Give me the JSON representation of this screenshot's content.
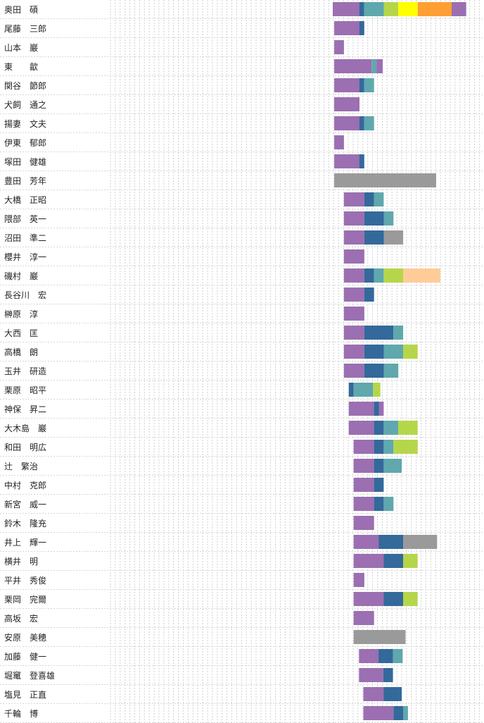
{
  "chart_data": {
    "type": "bar",
    "orientation": "horizontal",
    "stacked": true,
    "grid": true,
    "colors": {
      "purple": "#9b6fb1",
      "blue": "#33699b",
      "teal": "#5fa8ae",
      "lime": "#b5d64a",
      "yellow": "#ffff00",
      "orange": "#ff9e32",
      "peach": "#ffcc99",
      "gray": "#9a9a9a"
    },
    "rows": [
      {
        "name": "奥田　碩",
        "start": 68,
        "segments": [
          [
            "purple",
            5.5
          ],
          [
            "blue",
            1
          ],
          [
            "teal",
            4
          ],
          [
            "lime",
            3
          ],
          [
            "yellow",
            4
          ],
          [
            "orange",
            7
          ],
          [
            "purple",
            3
          ]
        ]
      },
      {
        "name": "尾藤　三郎",
        "start": 68.3,
        "segments": [
          [
            "purple",
            5.2
          ],
          [
            "blue",
            1
          ]
        ]
      },
      {
        "name": "山本　巖",
        "start": 68.3,
        "segments": [
          [
            "purple",
            2
          ]
        ]
      },
      {
        "name": "東　　歙",
        "start": 68.3,
        "segments": [
          [
            "purple",
            7.7
          ],
          [
            "teal",
            1
          ],
          [
            "purple",
            1.3
          ]
        ]
      },
      {
        "name": "関谷　節郎",
        "start": 68.3,
        "segments": [
          [
            "purple",
            5.2
          ],
          [
            "blue",
            1
          ],
          [
            "teal",
            2
          ]
        ]
      },
      {
        "name": "犬飼　通之",
        "start": 68.3,
        "segments": [
          [
            "purple",
            5.2
          ]
        ]
      },
      {
        "name": "揚妻　文夫",
        "start": 68.3,
        "segments": [
          [
            "purple",
            5.2
          ],
          [
            "blue",
            1
          ],
          [
            "teal",
            2
          ]
        ]
      },
      {
        "name": "伊東　郁郎",
        "start": 68.3,
        "segments": [
          [
            "purple",
            2
          ]
        ]
      },
      {
        "name": "塚田　健雄",
        "start": 68.3,
        "segments": [
          [
            "purple",
            5.2
          ],
          [
            "blue",
            1
          ]
        ]
      },
      {
        "name": "豊田　芳年",
        "start": 68.3,
        "segments": [
          [
            "gray",
            21
          ]
        ]
      },
      {
        "name": "大橋　正昭",
        "start": 70.3,
        "segments": [
          [
            "purple",
            4.2
          ],
          [
            "blue",
            2
          ],
          [
            "teal",
            2
          ]
        ]
      },
      {
        "name": "隈部　英一",
        "start": 70.3,
        "segments": [
          [
            "purple",
            4.2
          ],
          [
            "blue",
            4
          ],
          [
            "teal",
            2
          ]
        ]
      },
      {
        "name": "沼田　準二",
        "start": 70.3,
        "segments": [
          [
            "purple",
            4.2
          ],
          [
            "blue",
            4
          ],
          [
            "gray",
            4
          ]
        ]
      },
      {
        "name": "櫻井　淳一",
        "start": 70.3,
        "segments": [
          [
            "purple",
            4.2
          ]
        ]
      },
      {
        "name": "磯村　巖",
        "start": 70.3,
        "segments": [
          [
            "purple",
            4.2
          ],
          [
            "blue",
            2
          ],
          [
            "teal",
            2
          ],
          [
            "lime",
            4
          ],
          [
            "peach",
            7.7
          ]
        ]
      },
      {
        "name": "長谷川　宏",
        "start": 70.3,
        "segments": [
          [
            "purple",
            4.2
          ],
          [
            "blue",
            2
          ]
        ]
      },
      {
        "name": "榊原　淳",
        "start": 70.3,
        "segments": [
          [
            "purple",
            4.2
          ]
        ]
      },
      {
        "name": "大西　匡",
        "start": 70.3,
        "segments": [
          [
            "purple",
            4.2
          ],
          [
            "blue",
            6
          ],
          [
            "teal",
            2
          ]
        ]
      },
      {
        "name": "高橋　朗",
        "start": 70.3,
        "segments": [
          [
            "purple",
            4.2
          ],
          [
            "blue",
            4
          ],
          [
            "teal",
            4
          ],
          [
            "lime",
            3
          ]
        ]
      },
      {
        "name": "玉井　研造",
        "start": 70.3,
        "segments": [
          [
            "purple",
            4.2
          ],
          [
            "blue",
            4
          ],
          [
            "teal",
            3
          ]
        ]
      },
      {
        "name": "栗原　昭平",
        "start": 71.3,
        "segments": [
          [
            "blue",
            1
          ],
          [
            "teal",
            4
          ],
          [
            "lime",
            1.5
          ]
        ]
      },
      {
        "name": "神保　昇二",
        "start": 71.3,
        "segments": [
          [
            "purple",
            5.2
          ],
          [
            "blue",
            1
          ],
          [
            "purple",
            1
          ]
        ]
      },
      {
        "name": "大木島　巖",
        "start": 71.3,
        "segments": [
          [
            "purple",
            5.2
          ],
          [
            "blue",
            2
          ],
          [
            "teal",
            3
          ],
          [
            "lime",
            4
          ]
        ]
      },
      {
        "name": "和田　明広",
        "start": 72.3,
        "segments": [
          [
            "purple",
            4.2
          ],
          [
            "blue",
            2
          ],
          [
            "teal",
            2
          ],
          [
            "lime",
            5
          ]
        ]
      },
      {
        "name": "辻　繁治",
        "start": 72.3,
        "segments": [
          [
            "purple",
            4.2
          ],
          [
            "blue",
            2
          ],
          [
            "teal",
            3.7
          ]
        ]
      },
      {
        "name": "中村　克郎",
        "start": 72.3,
        "segments": [
          [
            "purple",
            4.2
          ],
          [
            "blue",
            2
          ]
        ]
      },
      {
        "name": "新宮　威一",
        "start": 72.3,
        "segments": [
          [
            "purple",
            4.2
          ],
          [
            "blue",
            2
          ],
          [
            "teal",
            2
          ]
        ]
      },
      {
        "name": "鈴木　隆充",
        "start": 72.3,
        "segments": [
          [
            "purple",
            4.2
          ]
        ]
      },
      {
        "name": "井上　輝一",
        "start": 72.3,
        "segments": [
          [
            "purple",
            5.2
          ],
          [
            "blue",
            5
          ],
          [
            "gray",
            7
          ]
        ]
      },
      {
        "name": "横井　明",
        "start": 72.3,
        "segments": [
          [
            "purple",
            6.2
          ],
          [
            "blue",
            4
          ],
          [
            "lime",
            3
          ]
        ]
      },
      {
        "name": "平井　秀俊",
        "start": 72.3,
        "segments": [
          [
            "purple",
            2.2
          ]
        ]
      },
      {
        "name": "栗岡　完爾",
        "start": 72.3,
        "segments": [
          [
            "purple",
            6.2
          ],
          [
            "blue",
            4
          ],
          [
            "lime",
            3
          ]
        ]
      },
      {
        "name": "高坂　宏",
        "start": 72.3,
        "segments": [
          [
            "purple",
            4.2
          ]
        ]
      },
      {
        "name": "安原　美穂",
        "start": 72.3,
        "segments": [
          [
            "gray",
            10.7
          ]
        ]
      },
      {
        "name": "加藤　健一",
        "start": 73.4,
        "segments": [
          [
            "purple",
            4
          ],
          [
            "blue",
            3
          ],
          [
            "teal",
            2
          ]
        ]
      },
      {
        "name": "堀竃　登喜雄",
        "start": 73.4,
        "segments": [
          [
            "purple",
            5
          ],
          [
            "blue",
            2
          ]
        ]
      },
      {
        "name": "塩見　正直",
        "start": 74.3,
        "segments": [
          [
            "purple",
            4.2
          ],
          [
            "blue",
            3.7
          ]
        ]
      },
      {
        "name": "千輪　博",
        "start": 74.3,
        "segments": [
          [
            "purple",
            6.2
          ],
          [
            "blue",
            2
          ],
          [
            "teal",
            1
          ]
        ]
      }
    ]
  }
}
